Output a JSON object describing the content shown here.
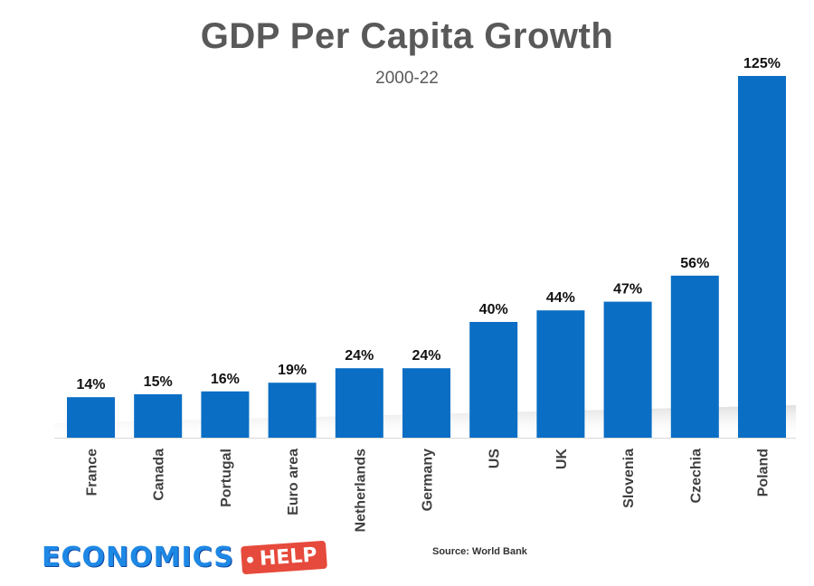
{
  "chart_data": {
    "type": "bar",
    "title": "GDP Per Capita Growth",
    "subtitle": "2000-22",
    "categories": [
      "France",
      "Canada",
      "Portugal",
      "Euro area",
      "Netherlands",
      "Germany",
      "US",
      "UK",
      "Slovenia",
      "Czechia",
      "Poland"
    ],
    "values": [
      14,
      15,
      16,
      19,
      24,
      24,
      40,
      44,
      47,
      56,
      125
    ],
    "value_labels": [
      "14%",
      "15%",
      "16%",
      "19%",
      "24%",
      "24%",
      "40%",
      "44%",
      "47%",
      "56%",
      "125%"
    ],
    "xlabel": "",
    "ylabel": "",
    "ylim": [
      0,
      125
    ],
    "grid": false,
    "bar_color": "#0a6ec4"
  },
  "source": "Source: World Bank",
  "logo": {
    "text": "ECONOMICS",
    "tag": "HELP",
    "text_color": "#1e88e5",
    "tag_color": "#e64a3c"
  }
}
